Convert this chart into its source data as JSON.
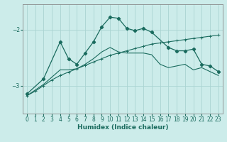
{
  "xlabel": "Humidex (Indice chaleur)",
  "background_color": "#ccecea",
  "grid_color": "#aad4d2",
  "line_color": "#1a6b5e",
  "xlim": [
    -0.5,
    23.5
  ],
  "ylim": [
    -3.5,
    -1.55
  ],
  "yticks": [
    -3,
    -2
  ],
  "xticks": [
    0,
    1,
    2,
    3,
    4,
    5,
    6,
    7,
    8,
    9,
    10,
    11,
    12,
    13,
    14,
    15,
    16,
    17,
    18,
    19,
    20,
    21,
    22,
    23
  ],
  "series_peak_x": [
    0,
    2,
    4,
    5,
    6,
    7,
    8,
    9,
    10,
    11,
    12,
    13,
    14,
    15,
    17,
    18,
    19,
    20,
    21,
    22,
    23
  ],
  "series_peak_y": [
    -3.15,
    -2.88,
    -2.22,
    -2.52,
    -2.62,
    -2.42,
    -2.22,
    -1.95,
    -1.78,
    -1.8,
    -1.98,
    -2.02,
    -1.98,
    -2.05,
    -2.32,
    -2.38,
    -2.38,
    -2.35,
    -2.62,
    -2.65,
    -2.75
  ],
  "series_diag_x": [
    0,
    1,
    2,
    3,
    4,
    5,
    6,
    7,
    8,
    9,
    10,
    11,
    12,
    13,
    14,
    15,
    16,
    17,
    18,
    19,
    20,
    21,
    22,
    23
  ],
  "series_diag_y": [
    -3.18,
    -3.1,
    -3.0,
    -2.9,
    -2.82,
    -2.76,
    -2.7,
    -2.64,
    -2.58,
    -2.52,
    -2.46,
    -2.42,
    -2.38,
    -2.34,
    -2.3,
    -2.26,
    -2.24,
    -2.22,
    -2.2,
    -2.18,
    -2.16,
    -2.14,
    -2.12,
    -2.1
  ],
  "series_flat_x": [
    0,
    1,
    2,
    3,
    4,
    5,
    6,
    7,
    8,
    9,
    10,
    11,
    12,
    13,
    14,
    15,
    16,
    17,
    18,
    19,
    20,
    21,
    22,
    23
  ],
  "series_flat_y": [
    -3.18,
    -3.08,
    -2.98,
    -2.85,
    -2.72,
    -2.72,
    -2.7,
    -2.62,
    -2.52,
    -2.4,
    -2.32,
    -2.4,
    -2.42,
    -2.42,
    -2.42,
    -2.45,
    -2.62,
    -2.68,
    -2.65,
    -2.62,
    -2.72,
    -2.68,
    -2.75,
    -2.82
  ]
}
